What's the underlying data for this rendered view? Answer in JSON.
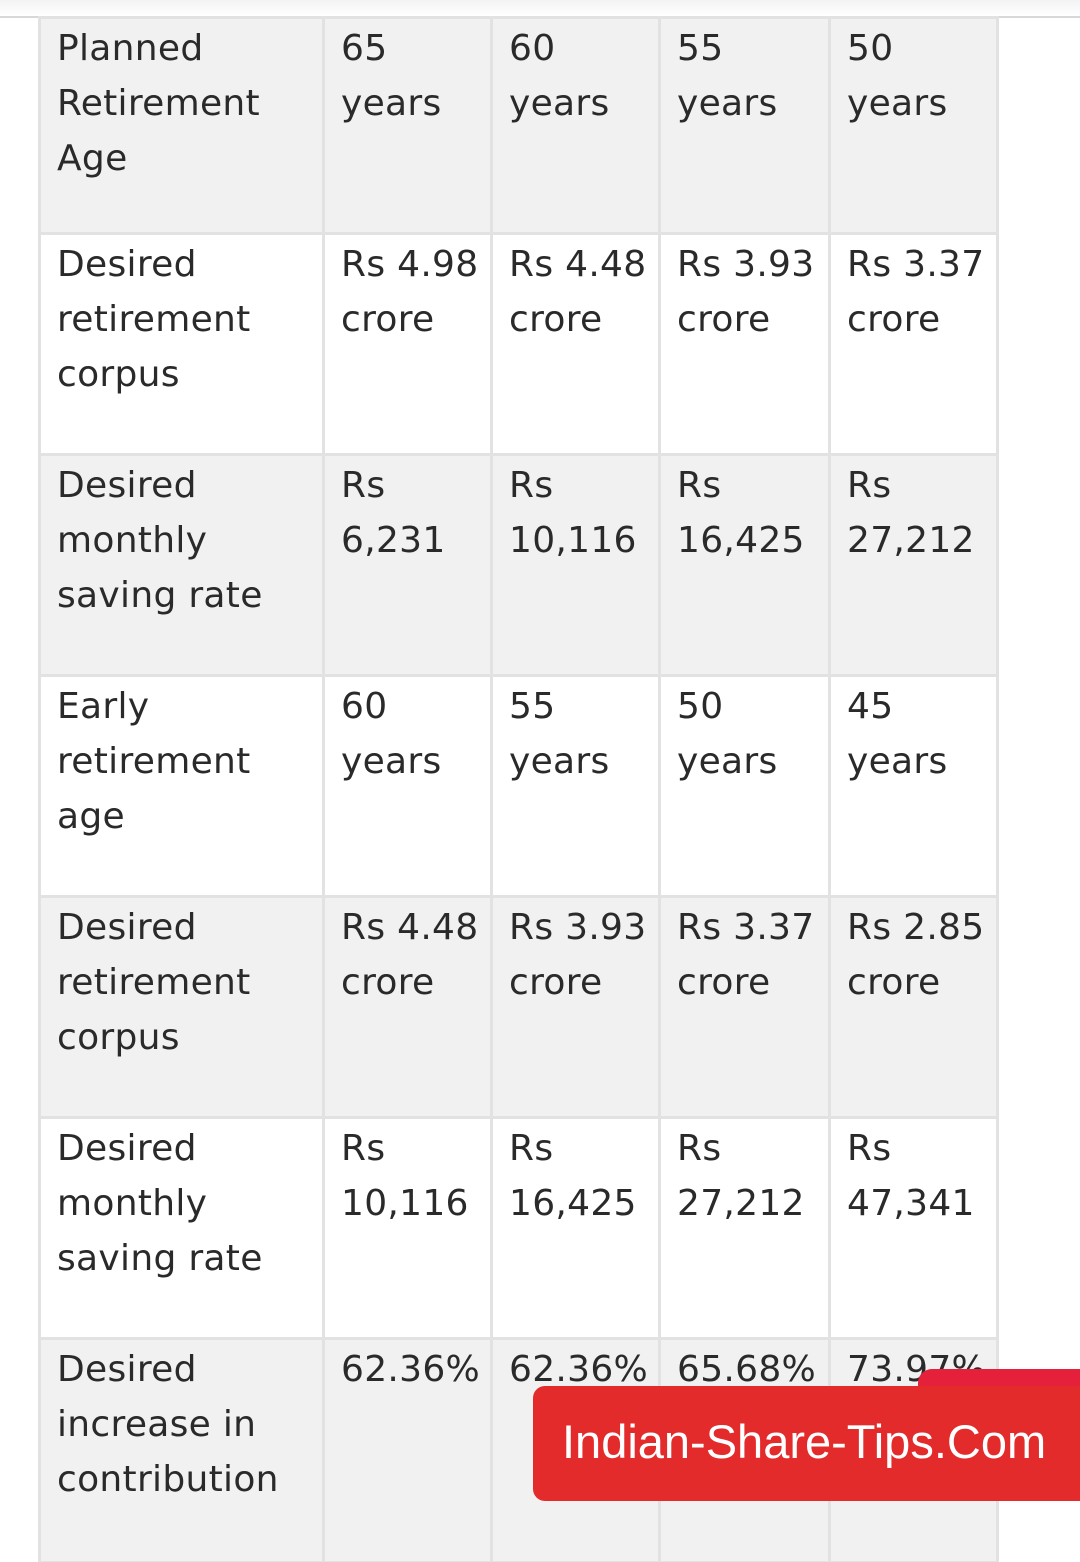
{
  "table": {
    "rows": [
      {
        "label": "Planned Retirement Age",
        "values": [
          "65 years",
          "60 years",
          "55 years",
          "50 years"
        ]
      },
      {
        "label": "Desired retirement corpus",
        "values": [
          "Rs 4.98 crore",
          "Rs 4.48 crore",
          "Rs 3.93 crore",
          "Rs 3.37 crore"
        ]
      },
      {
        "label": "Desired monthly saving rate",
        "values": [
          "Rs 6,231",
          "Rs 10,116",
          "Rs 16,425",
          "Rs 27,212"
        ]
      },
      {
        "label": "Early retirement age",
        "values": [
          "60 years",
          "55 years",
          "50 years",
          "45 years"
        ]
      },
      {
        "label": "Desired retirement corpus",
        "values": [
          "Rs 4.48 crore",
          "Rs 3.93 crore",
          "Rs 3.37 crore",
          "Rs 2.85 crore"
        ]
      },
      {
        "label": "Desired monthly saving rate",
        "values": [
          "Rs 10,116",
          "Rs 16,425",
          "Rs 27,212",
          "Rs 47,341"
        ]
      },
      {
        "label": "Desired increase in contribution",
        "values": [
          "62.36%",
          "62.36%",
          "65.68%",
          "73.97%"
        ]
      }
    ]
  },
  "banner": {
    "text": "Indian-Share-Tips.Com",
    "color": "#e32b2b"
  }
}
